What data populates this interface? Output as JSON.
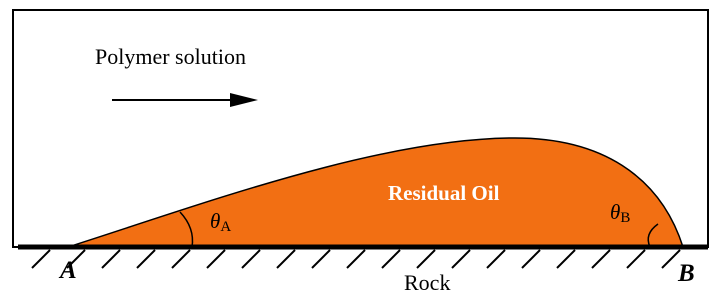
{
  "flow_label": "Polymer solution",
  "oil_label": "Residual Oil",
  "angle_a": {
    "symbol": "θ",
    "subscript": "A"
  },
  "angle_b": {
    "symbol": "θ",
    "subscript": "B"
  },
  "point_a": "A",
  "point_b": "B",
  "rock_label": "Rock"
}
